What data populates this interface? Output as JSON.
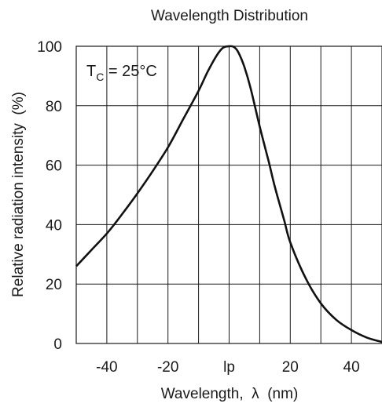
{
  "chart_data": {
    "type": "line",
    "title": "Wavelength Distribution",
    "xlabel": "Wavelength,  λ  (nm)",
    "ylabel": "Relative radiation intensity  (%)",
    "xlim": [
      -50,
      50
    ],
    "ylim": [
      0,
      100
    ],
    "x_ticks": [
      {
        "value": -40,
        "label": "-40"
      },
      {
        "value": -20,
        "label": "-20"
      },
      {
        "value": 0,
        "label": "lp"
      },
      {
        "value": 20,
        "label": "20"
      },
      {
        "value": 40,
        "label": "40"
      }
    ],
    "y_ticks": [
      {
        "value": 0,
        "label": "0"
      },
      {
        "value": 20,
        "label": "20"
      },
      {
        "value": 40,
        "label": "40"
      },
      {
        "value": 60,
        "label": "60"
      },
      {
        "value": 80,
        "label": "80"
      },
      {
        "value": 100,
        "label": "100"
      }
    ],
    "grid": {
      "x_step": 10,
      "y_step": 20
    },
    "annotation": {
      "main": "T",
      "sub": "C",
      "rest": " = 25°C"
    },
    "series": [
      {
        "color": "#111111",
        "points": [
          [
            -50,
            26
          ],
          [
            -45,
            31.5
          ],
          [
            -40,
            37
          ],
          [
            -35,
            43.5
          ],
          [
            -30,
            50.5
          ],
          [
            -25,
            58
          ],
          [
            -20,
            66
          ],
          [
            -15,
            75.5
          ],
          [
            -10,
            85
          ],
          [
            -7,
            91.5
          ],
          [
            -4,
            97
          ],
          [
            -2,
            99.5
          ],
          [
            0,
            100
          ],
          [
            1.5,
            99.8
          ],
          [
            3,
            98
          ],
          [
            5,
            93
          ],
          [
            7,
            86
          ],
          [
            10,
            73
          ],
          [
            13,
            61
          ],
          [
            15,
            52.5
          ],
          [
            18,
            41.5
          ],
          [
            20,
            34
          ],
          [
            25,
            22
          ],
          [
            30,
            13.5
          ],
          [
            35,
            8
          ],
          [
            40,
            4.5
          ],
          [
            45,
            2
          ],
          [
            50,
            0.5
          ]
        ]
      }
    ]
  }
}
